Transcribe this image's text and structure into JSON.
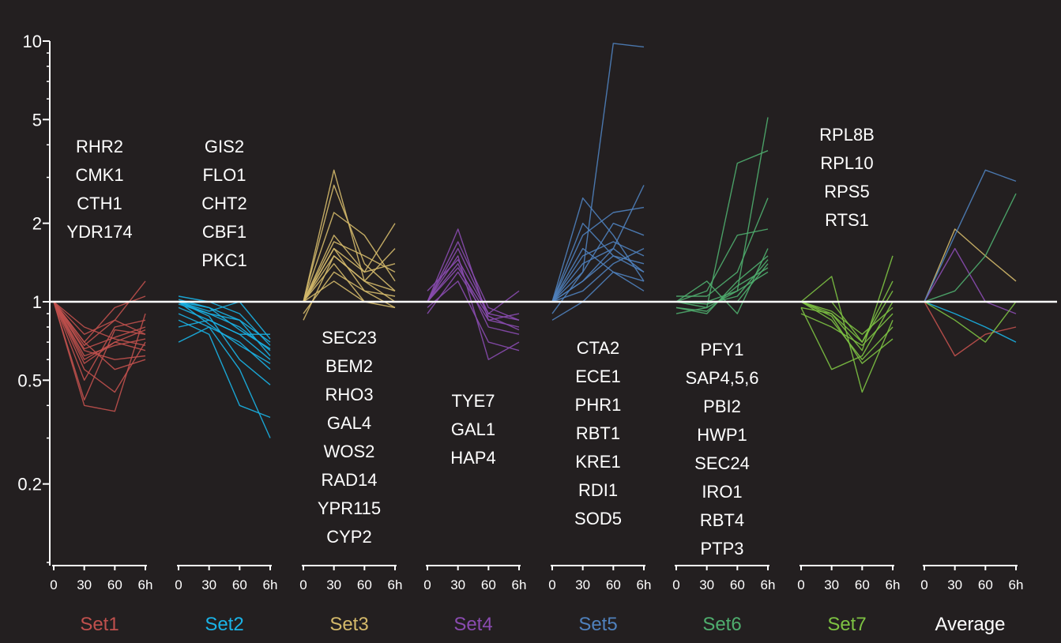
{
  "chart_data": {
    "type": "line",
    "y_scale": "log",
    "ylim": [
      0.1,
      10
    ],
    "y_ticks": [
      {
        "value": 10,
        "label": "10"
      },
      {
        "value": 5,
        "label": "5"
      },
      {
        "value": 2,
        "label": "2"
      },
      {
        "value": 1,
        "label": "1"
      },
      {
        "value": 0.5,
        "label": "0.5"
      },
      {
        "value": 0.2,
        "label": "0.2"
      }
    ],
    "x_ticks": [
      "0",
      "30",
      "60",
      "6h"
    ],
    "reference_line": 1,
    "grid": false,
    "panels": [
      {
        "label": "Set1",
        "color": "#c0504d",
        "genes": [
          "RHR2",
          "CMK1",
          "CTH1",
          "YDR174"
        ],
        "gene_position": "above",
        "series": [
          {
            "values": [
              1.0,
              0.66,
              0.73,
              0.8
            ]
          },
          {
            "values": [
              1.0,
              0.62,
              0.68,
              0.72
            ]
          },
          {
            "values": [
              1.0,
              0.68,
              0.85,
              0.75
            ]
          },
          {
            "values": [
              1.0,
              0.6,
              0.7,
              0.65
            ]
          },
          {
            "values": [
              1.0,
              0.7,
              0.95,
              1.05
            ]
          },
          {
            "values": [
              1.0,
              0.65,
              0.6,
              0.62
            ]
          },
          {
            "values": [
              1.0,
              0.55,
              0.45,
              0.7
            ]
          },
          {
            "values": [
              1.0,
              0.4,
              0.38,
              0.9
            ]
          },
          {
            "values": [
              1.0,
              0.42,
              0.78,
              0.75
            ]
          },
          {
            "values": [
              1.0,
              0.5,
              0.8,
              0.85
            ]
          },
          {
            "values": [
              1.0,
              0.75,
              0.85,
              1.2
            ]
          },
          {
            "values": [
              1.0,
              0.8,
              0.72,
              0.68
            ]
          },
          {
            "values": [
              1.0,
              0.7,
              0.55,
              0.6
            ]
          },
          {
            "values": [
              1.0,
              0.58,
              0.7,
              0.78
            ]
          }
        ]
      },
      {
        "label": "Set2",
        "color": "#1ab2e6",
        "genes": [
          "GIS2",
          "FLO1",
          "CHT2",
          "CBF1",
          "PKC1"
        ],
        "gene_position": "above",
        "series": [
          {
            "values": [
              1.0,
              0.95,
              0.85,
              0.7
            ]
          },
          {
            "values": [
              1.0,
              0.9,
              0.8,
              0.65
            ]
          },
          {
            "values": [
              1.0,
              0.92,
              1.0,
              0.72
            ]
          },
          {
            "values": [
              0.95,
              0.85,
              0.75,
              0.6
            ]
          },
          {
            "values": [
              0.9,
              0.8,
              0.7,
              0.55
            ]
          },
          {
            "values": [
              1.05,
              1.0,
              0.9,
              0.68
            ]
          },
          {
            "values": [
              0.85,
              0.75,
              0.4,
              0.36
            ]
          },
          {
            "values": [
              0.7,
              0.8,
              0.55,
              0.3
            ]
          },
          {
            "values": [
              1.0,
              0.88,
              0.6,
              0.48
            ]
          },
          {
            "values": [
              0.98,
              0.9,
              0.85,
              0.62
            ]
          },
          {
            "values": [
              1.02,
              0.95,
              0.78,
              0.66
            ]
          },
          {
            "values": [
              0.8,
              0.85,
              0.75,
              0.75
            ]
          },
          {
            "values": [
              1.0,
              0.82,
              0.68,
              0.58
            ]
          }
        ]
      },
      {
        "label": "Set3",
        "color": "#d4b96a",
        "genes": [
          "SEC23",
          "BEM2",
          "RHO3",
          "GAL4",
          "WOS2",
          "RAD14",
          "YPR115",
          "CYP2"
        ],
        "gene_position": "below",
        "series": [
          {
            "values": [
              1.0,
              3.2,
              1.2,
              1.0
            ]
          },
          {
            "values": [
              1.0,
              2.8,
              1.4,
              1.1
            ]
          },
          {
            "values": [
              1.0,
              2.2,
              1.8,
              1.2
            ]
          },
          {
            "values": [
              1.0,
              1.8,
              1.3,
              2.0
            ]
          },
          {
            "values": [
              1.0,
              1.6,
              1.1,
              1.05
            ]
          },
          {
            "values": [
              1.0,
              1.5,
              1.2,
              1.6
            ]
          },
          {
            "values": [
              1.0,
              1.4,
              1.0,
              1.0
            ]
          },
          {
            "values": [
              0.9,
              1.3,
              1.1,
              0.95
            ]
          },
          {
            "values": [
              1.0,
              1.7,
              1.5,
              1.3
            ]
          },
          {
            "values": [
              0.85,
              1.5,
              1.2,
              1.1
            ]
          },
          {
            "values": [
              1.0,
              1.2,
              1.0,
              0.95
            ]
          },
          {
            "values": [
              1.0,
              1.6,
              1.3,
              1.4
            ]
          }
        ]
      },
      {
        "label": "Set4",
        "color": "#8a4bb0",
        "genes": [
          "TYE7",
          "GAL1",
          "HAP4"
        ],
        "gene_position": "below",
        "series": [
          {
            "values": [
              1.0,
              1.9,
              0.85,
              0.8
            ]
          },
          {
            "values": [
              1.0,
              1.6,
              0.9,
              0.85
            ]
          },
          {
            "values": [
              1.0,
              1.4,
              0.8,
              0.75
            ]
          },
          {
            "values": [
              1.0,
              1.5,
              0.6,
              0.7
            ]
          },
          {
            "values": [
              0.9,
              1.3,
              0.85,
              0.9
            ]
          },
          {
            "values": [
              1.1,
              1.45,
              0.9,
              1.1
            ]
          },
          {
            "values": [
              1.0,
              1.7,
              0.95,
              0.85
            ]
          },
          {
            "values": [
              0.95,
              1.2,
              0.7,
              0.65
            ]
          },
          {
            "values": [
              1.0,
              1.35,
              0.88,
              0.78
            ]
          }
        ]
      },
      {
        "label": "Set5",
        "color": "#4f81bd",
        "genes": [
          "CTA2",
          "ECE1",
          "PHR1",
          "RBT1",
          "KRE1",
          "RDI1",
          "SOD5"
        ],
        "gene_position": "below",
        "series": [
          {
            "values": [
              1.0,
              1.3,
              9.8,
              9.5
            ]
          },
          {
            "values": [
              1.0,
              2.5,
              1.8,
              1.2
            ]
          },
          {
            "values": [
              1.0,
              1.8,
              2.2,
              2.3
            ]
          },
          {
            "values": [
              1.0,
              1.2,
              1.6,
              2.8
            ]
          },
          {
            "values": [
              1.0,
              1.4,
              1.6,
              1.3
            ]
          },
          {
            "values": [
              1.0,
              1.2,
              1.5,
              1.4
            ]
          },
          {
            "values": [
              1.0,
              1.6,
              1.3,
              1.1
            ]
          },
          {
            "values": [
              1.0,
              1.1,
              1.4,
              1.6
            ]
          },
          {
            "values": [
              0.9,
              1.3,
              2.0,
              1.8
            ]
          },
          {
            "values": [
              0.85,
              1.0,
              1.3,
              1.2
            ]
          },
          {
            "values": [
              1.0,
              2.0,
              1.5,
              1.3
            ]
          },
          {
            "values": [
              1.0,
              1.5,
              1.7,
              1.5
            ]
          }
        ]
      },
      {
        "label": "Set6",
        "color": "#4fad6e",
        "genes": [
          "PFY1",
          "SAP4,5,6",
          "PBI2",
          "HWP1",
          "SEC24",
          "IRO1",
          "RBT4",
          "PTP3"
        ],
        "gene_position": "below",
        "series": [
          {
            "values": [
              1.0,
              1.0,
              1.1,
              5.1
            ]
          },
          {
            "values": [
              1.0,
              0.95,
              3.4,
              3.8
            ]
          },
          {
            "values": [
              1.0,
              1.1,
              1.8,
              1.9
            ]
          },
          {
            "values": [
              0.95,
              0.9,
              1.2,
              1.5
            ]
          },
          {
            "values": [
              1.0,
              1.0,
              1.0,
              1.4
            ]
          },
          {
            "values": [
              0.9,
              0.95,
              1.1,
              1.3
            ]
          },
          {
            "values": [
              1.0,
              1.2,
              0.9,
              1.6
            ]
          },
          {
            "values": [
              1.0,
              0.98,
              1.05,
              1.45
            ]
          },
          {
            "values": [
              1.05,
              1.05,
              1.3,
              2.5
            ]
          },
          {
            "values": [
              0.95,
              0.92,
              1.15,
              1.35
            ]
          }
        ]
      },
      {
        "label": "Set7",
        "color": "#7dc242",
        "genes": [
          "RPL8B",
          "RPL10",
          "RPS5",
          "RTS1"
        ],
        "gene_position": "above",
        "series": [
          {
            "values": [
              1.0,
              0.9,
              0.65,
              1.5
            ]
          },
          {
            "values": [
              1.0,
              1.0,
              0.7,
              1.2
            ]
          },
          {
            "values": [
              0.95,
              0.55,
              0.62,
              1.0
            ]
          },
          {
            "values": [
              1.0,
              1.25,
              0.45,
              0.85
            ]
          },
          {
            "values": [
              0.9,
              0.8,
              0.68,
              0.9
            ]
          },
          {
            "values": [
              1.0,
              0.92,
              0.75,
              0.95
            ]
          },
          {
            "values": [
              1.0,
              0.85,
              0.6,
              0.8
            ]
          },
          {
            "values": [
              0.95,
              0.9,
              0.7,
              1.1
            ]
          },
          {
            "values": [
              1.0,
              0.88,
              0.58,
              0.72
            ]
          }
        ]
      },
      {
        "label": "Average",
        "color": "#ffffff",
        "genes": [],
        "gene_position": "above",
        "series": [
          {
            "color": "#c0504d",
            "values": [
              1.0,
              0.62,
              0.75,
              0.8
            ]
          },
          {
            "color": "#1ab2e6",
            "values": [
              1.0,
              0.9,
              0.8,
              0.7
            ]
          },
          {
            "color": "#d4b96a",
            "values": [
              1.0,
              1.9,
              1.5,
              1.2
            ]
          },
          {
            "color": "#8a4bb0",
            "values": [
              1.0,
              1.6,
              1.0,
              0.9
            ]
          },
          {
            "color": "#4f81bd",
            "values": [
              1.0,
              1.8,
              3.2,
              2.9
            ]
          },
          {
            "color": "#4fad6e",
            "values": [
              1.0,
              1.1,
              1.5,
              2.6
            ]
          },
          {
            "color": "#7dc242",
            "values": [
              1.0,
              0.85,
              0.7,
              1.0
            ]
          }
        ]
      }
    ]
  }
}
